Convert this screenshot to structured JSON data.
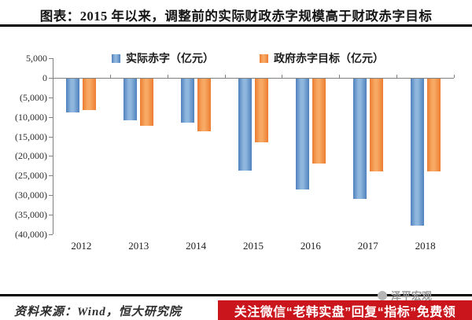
{
  "title": "图表：2015 年以来，调整前的实际财政赤字规模高于财政赤字目标",
  "chart_data": {
    "type": "bar",
    "title": "2015 年以来，调整前的实际财政赤字规模高于财政赤字目标",
    "categories": [
      "2012",
      "2013",
      "2014",
      "2015",
      "2016",
      "2017",
      "2018"
    ],
    "series": [
      {
        "key": "actual",
        "name": "实际赤字（亿元）",
        "color": "#4F81BD",
        "color_light": "#8FB7DE",
        "values": [
          -8700,
          -10600,
          -11300,
          -23600,
          -28300,
          -30800,
          -37600
        ]
      },
      {
        "key": "target",
        "name": "政府赤字目标（亿元）",
        "color": "#ED7D31",
        "color_light": "#F7A964",
        "values": [
          -8000,
          -12000,
          -13500,
          -16200,
          -21800,
          -23800,
          -23800
        ]
      }
    ],
    "ylabel": "",
    "xlabel": "",
    "ylim": [
      -40000,
      5000
    ],
    "ytick_step": 5000,
    "yticks": [
      {
        "label": "5,000",
        "value": 5000
      },
      {
        "label": "0",
        "value": 0
      },
      {
        "label": "(5,000)",
        "value": -5000
      },
      {
        "label": "(10,000)",
        "value": -10000
      },
      {
        "label": "(15,000)",
        "value": -15000
      },
      {
        "label": "(20,000)",
        "value": -20000
      },
      {
        "label": "(25,000)",
        "value": -25000
      },
      {
        "label": "(30,000)",
        "value": -30000
      },
      {
        "label": "(35,000)",
        "value": -35000
      },
      {
        "label": "(40,000)",
        "value": -40000
      }
    ],
    "legend_position": "top",
    "grid": false
  },
  "source_note": "资料来源：Wind，恒大研究院",
  "watermark": {
    "text": "泽平宏观"
  },
  "banner": {
    "text": "关注微信“老韩实盘”回复“指标”免费领",
    "background": "#C9151B",
    "color": "#FFFFFF"
  }
}
